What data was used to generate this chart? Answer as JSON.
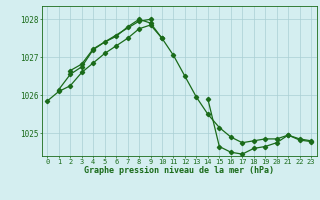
{
  "x": [
    0,
    1,
    2,
    3,
    4,
    5,
    6,
    7,
    8,
    9,
    10,
    11,
    12,
    13,
    14,
    15,
    16,
    17,
    18,
    19,
    20,
    21,
    22,
    23
  ],
  "line1": [
    1025.85,
    1026.1,
    1026.25,
    1026.6,
    1026.85,
    1027.1,
    1027.3,
    1027.5,
    1027.75,
    1027.85,
    1027.5,
    1027.05,
    1026.5,
    1025.95,
    1025.5,
    1025.15,
    1024.9,
    1024.75,
    1024.8,
    1024.85,
    1024.85,
    1024.95,
    1024.85,
    1024.8
  ],
  "line2_x": [
    1,
    2,
    3,
    4,
    5,
    6,
    7,
    8,
    9,
    10,
    14,
    15,
    16,
    17,
    18,
    19,
    20,
    21,
    22,
    23
  ],
  "line2_y": [
    1026.15,
    1026.55,
    1026.75,
    1027.2,
    1027.4,
    1027.55,
    1027.8,
    1028.0,
    1027.9,
    1027.5,
    1025.9,
    1024.65,
    1024.5,
    1024.45,
    1024.6,
    1024.65,
    1024.75,
    1024.95,
    1024.82,
    1024.78
  ],
  "line3_x": [
    2,
    3,
    4,
    8,
    9
  ],
  "line3_y": [
    1026.65,
    1026.82,
    1027.22,
    1027.95,
    1028.0
  ],
  "ylim": [
    1024.4,
    1028.35
  ],
  "yticks": [
    1025,
    1026,
    1027,
    1028
  ],
  "xticks": [
    0,
    1,
    2,
    3,
    4,
    5,
    6,
    7,
    8,
    9,
    10,
    11,
    12,
    13,
    14,
    15,
    16,
    17,
    18,
    19,
    20,
    21,
    22,
    23
  ],
  "line_color": "#1a6b1a",
  "bg_color": "#d4eef0",
  "grid_color": "#aacfd4",
  "xlabel": "Graphe pression niveau de la mer (hPa)",
  "marker": "D",
  "marker_size": 2.2,
  "line_width": 0.9,
  "tick_fontsize": 5.0,
  "label_fontsize": 6.0
}
